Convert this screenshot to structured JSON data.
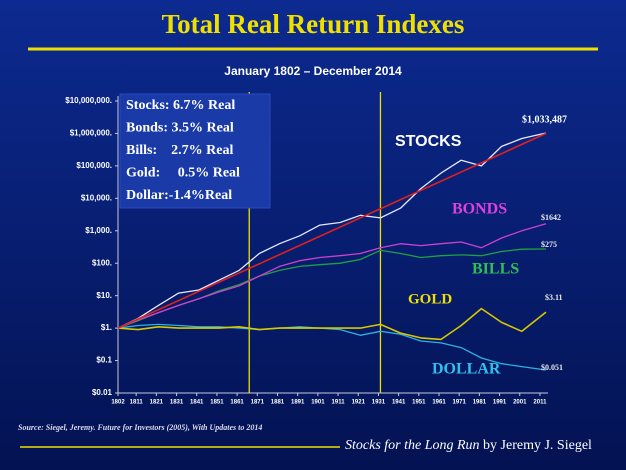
{
  "chart_data": {
    "type": "line",
    "title": "Total Real Return Indexes",
    "subtitle": "January 1802 – December 2014",
    "log_scale": true,
    "x": [
      1802,
      1812,
      1822,
      1832,
      1842,
      1852,
      1862,
      1872,
      1882,
      1892,
      1902,
      1912,
      1922,
      1932,
      1942,
      1952,
      1962,
      1972,
      1982,
      1992,
      2002,
      2014
    ],
    "xlim": [
      1802,
      2014
    ],
    "xticks": [
      1802,
      1811,
      1821,
      1831,
      1841,
      1851,
      1861,
      1871,
      1881,
      1891,
      1901,
      1911,
      1921,
      1931,
      1941,
      1951,
      1961,
      1971,
      1981,
      1991,
      2001,
      2011
    ],
    "ylim": [
      0.01,
      10000000
    ],
    "yticks": [
      {
        "value": 10000000,
        "label": "$10,000,000."
      },
      {
        "value": 1000000,
        "label": "$1,000,000."
      },
      {
        "value": 100000,
        "label": "$100,000."
      },
      {
        "value": 10000,
        "label": "$10,000."
      },
      {
        "value": 1000,
        "label": "$1,000."
      },
      {
        "value": 100,
        "label": "$100."
      },
      {
        "value": 10,
        "label": "$10."
      },
      {
        "value": 1,
        "label": "$1."
      },
      {
        "value": 0.1,
        "label": "$0.1"
      },
      {
        "value": 0.01,
        "label": "$0.01"
      }
    ],
    "series": [
      {
        "name": "STOCKS",
        "color": "#e6e8ff",
        "label_color": "#ffffff",
        "end_label": "$1,033,487",
        "values": [
          1,
          2,
          5,
          12,
          15,
          30,
          60,
          200,
          400,
          700,
          1500,
          1800,
          3000,
          2500,
          5000,
          20000,
          60000,
          150000,
          100000,
          400000,
          700000,
          1033487
        ]
      },
      {
        "name": "BONDS",
        "color": "#d040d0",
        "label_color": "#e040e0",
        "end_label": "$1642",
        "values": [
          1,
          1.8,
          3,
          5,
          8,
          13,
          20,
          40,
          80,
          120,
          150,
          170,
          200,
          300,
          400,
          350,
          400,
          450,
          300,
          600,
          1000,
          1642
        ]
      },
      {
        "name": "BILLS",
        "color": "#20a040",
        "label_color": "#30c050",
        "end_label": "$275",
        "values": [
          1,
          1.7,
          3,
          5,
          8,
          14,
          22,
          40,
          60,
          80,
          90,
          100,
          130,
          250,
          200,
          150,
          170,
          180,
          170,
          230,
          270,
          275
        ]
      },
      {
        "name": "GOLD",
        "color": "#d8c800",
        "label_color": "#f0e000",
        "end_label": "$3.11",
        "values": [
          1,
          0.9,
          1.1,
          1,
          1,
          1,
          1.1,
          0.9,
          1,
          1,
          1,
          1,
          1,
          1.3,
          0.7,
          0.5,
          0.45,
          1.2,
          4,
          1.5,
          0.8,
          3.11
        ]
      },
      {
        "name": "DOLLAR",
        "color": "#30b0e0",
        "label_color": "#30c0f0",
        "end_label": "$0.051",
        "values": [
          1,
          1.2,
          1.3,
          1.2,
          1.1,
          1.1,
          1,
          0.9,
          1,
          1.1,
          1,
          0.9,
          0.6,
          0.8,
          0.65,
          0.4,
          0.35,
          0.25,
          0.12,
          0.08,
          0.065,
          0.051
        ]
      }
    ],
    "trend": {
      "x": [
        1802,
        2014
      ],
      "values": [
        1,
        1000000
      ],
      "color": "#e02020"
    },
    "vlines": [
      1867,
      1932
    ],
    "vline_color": "#f0e000",
    "annotation_box": [
      "Stocks: 6.7% Real",
      "Bonds: 3.5% Real",
      "Bills:    2.7% Real",
      "Gold:     0.5% Real",
      "Dollar:-1.4%Real"
    ],
    "source": "Source: Siegel, Jeremy. Future for Investors (2005), With Updates to 2014",
    "footer_title": "Stocks for the Long Run",
    "footer_author": " by Jeremy J. Siegel"
  }
}
